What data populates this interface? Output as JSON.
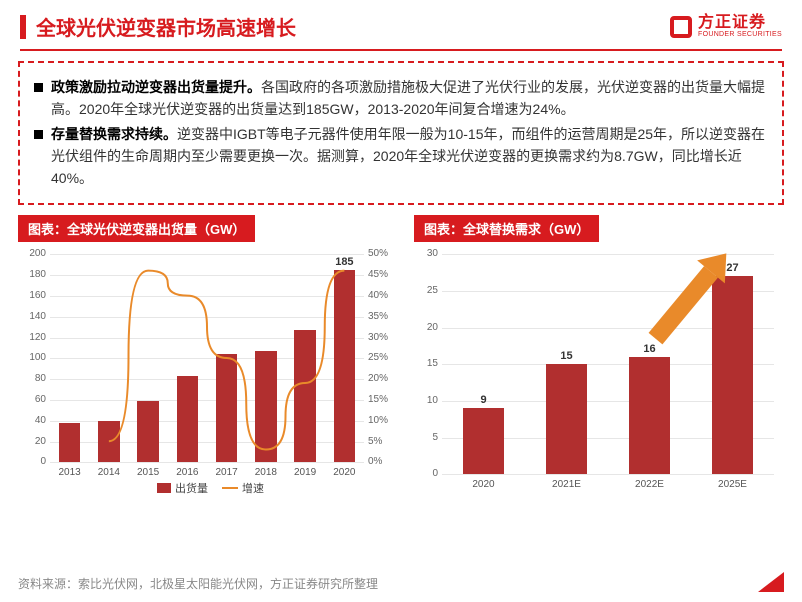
{
  "title": "全球光伏逆变器市场高速增长",
  "logo": {
    "cn": "方正证券",
    "en": "FOUNDER SECURITIES"
  },
  "bullets": [
    {
      "bold": "政策激励拉动逆变器出货量提升。",
      "rest": "各国政府的各项激励措施极大促进了光伏行业的发展，光伏逆变器的出货量大幅提高。2020年全球光伏逆变器的出货量达到185GW，2013-2020年间复合增速为24%。"
    },
    {
      "bold": "存量替换需求持续。",
      "rest": "逆变器中IGBT等电子元器件使用年限一般为10-15年，而组件的运营周期是25年，所以逆变器在光伏组件的生命周期内至少需要更换一次。据测算，2020年全球光伏逆变器的更换需求约为8.7GW，同比增长近40%。"
    }
  ],
  "chart1": {
    "title": "图表：全球光伏逆变器出货量（GW）",
    "type": "bar+line",
    "categories": [
      "2013",
      "2014",
      "2015",
      "2016",
      "2017",
      "2018",
      "2019",
      "2020"
    ],
    "bars": [
      38,
      40,
      59,
      83,
      104,
      107,
      127,
      185
    ],
    "line_pct": [
      null,
      5,
      46,
      40,
      25,
      3,
      19,
      46
    ],
    "bar_color": "#b12f2f",
    "line_color": "#e98a2a",
    "y_left_max": 200,
    "y_left_step": 20,
    "y_right_max": 50,
    "y_right_step": 5,
    "legend": {
      "bar": "出货量",
      "line": "增速"
    }
  },
  "chart2": {
    "title": "图表：全球替换需求（GW）",
    "type": "bar",
    "categories": [
      "2020",
      "2021E",
      "2022E",
      "2025E"
    ],
    "values": [
      9,
      15,
      16,
      27
    ],
    "bar_color": "#b12f2f",
    "y_max": 30,
    "y_step": 5,
    "arrow_color": "#e98a2a"
  },
  "source": "资料来源：索比光伏网，北极星太阳能光伏网，方正证券研究所整理"
}
